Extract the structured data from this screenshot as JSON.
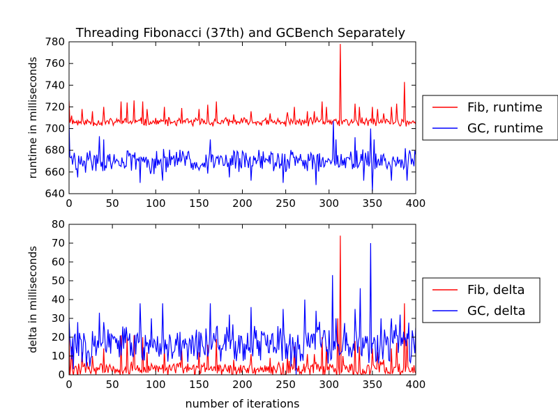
{
  "figure": {
    "title": "Threading Fibonacci (37th) and GCBench Separately"
  },
  "colors": {
    "fib": "#ff0000",
    "gc": "#0000ff",
    "axis": "#000000",
    "background": "#ffffff"
  },
  "chart_data": [
    {
      "type": "line",
      "title": "Threading Fibonacci (37th) and GCBench Separately",
      "xlabel": "",
      "ylabel": "runtime in milliseconds",
      "xlim": [
        0,
        400
      ],
      "ylim": [
        640,
        780
      ],
      "xticks": [
        0,
        50,
        100,
        150,
        200,
        250,
        300,
        350,
        400
      ],
      "yticks": [
        640,
        660,
        680,
        700,
        720,
        740,
        760,
        780
      ],
      "grid": false,
      "legend_position": "outside-right",
      "series": [
        {
          "name": "Fib, runtime",
          "color": "#ff0000",
          "base": 706,
          "amplitude": 3,
          "seed": 11,
          "points": [
            [
              0,
              726
            ],
            [
              3,
              712
            ],
            [
              15,
              718
            ],
            [
              27,
              716
            ],
            [
              40,
              720
            ],
            [
              60,
              725
            ],
            [
              67,
              724
            ],
            [
              75,
              726
            ],
            [
              85,
              725
            ],
            [
              90,
              718
            ],
            [
              110,
              720
            ],
            [
              130,
              719
            ],
            [
              150,
              718
            ],
            [
              160,
              722
            ],
            [
              170,
              725
            ],
            [
              190,
              713
            ],
            [
              210,
              716
            ],
            [
              232,
              714
            ],
            [
              252,
              715
            ],
            [
              260,
              720
            ],
            [
              275,
              716
            ],
            [
              283,
              716
            ],
            [
              292,
              725
            ],
            [
              297,
              720
            ],
            [
              305,
              707
            ],
            [
              313,
              778
            ],
            [
              330,
              723
            ],
            [
              335,
              720
            ],
            [
              350,
              720
            ],
            [
              356,
              718
            ],
            [
              363,
              714
            ],
            [
              372,
              720
            ],
            [
              378,
              723
            ],
            [
              387,
              743
            ],
            [
              395,
              705
            ],
            [
              400,
              704
            ]
          ]
        },
        {
          "name": "GC, runtime",
          "color": "#0000ff",
          "base": 670,
          "amplitude": 8,
          "seed": 29,
          "points": [
            [
              0,
              705
            ],
            [
              5,
              672
            ],
            [
              10,
              655
            ],
            [
              35,
              693
            ],
            [
              40,
              690
            ],
            [
              82,
              650
            ],
            [
              108,
              652
            ],
            [
              163,
              704
            ],
            [
              163,
              690
            ],
            [
              185,
              655
            ],
            [
              210,
              652
            ],
            [
              247,
              650
            ],
            [
              285,
              648
            ],
            [
              305,
              707
            ],
            [
              308,
              690
            ],
            [
              330,
              692
            ],
            [
              340,
              652
            ],
            [
              348,
              700
            ],
            [
              350,
              642
            ],
            [
              352,
              690
            ],
            [
              360,
              676
            ],
            [
              372,
              652
            ],
            [
              390,
              652
            ],
            [
              400,
              676
            ]
          ]
        }
      ]
    },
    {
      "type": "line",
      "title": "",
      "xlabel": "number of iterations",
      "ylabel": "delta in milliseconds",
      "xlim": [
        0,
        400
      ],
      "ylim": [
        0,
        80
      ],
      "xticks": [
        0,
        50,
        100,
        150,
        200,
        250,
        300,
        350,
        400
      ],
      "yticks": [
        0,
        10,
        20,
        30,
        40,
        50,
        60,
        70,
        80
      ],
      "grid": false,
      "legend_position": "outside-right",
      "series": [
        {
          "name": "Fib, delta",
          "color": "#ff0000",
          "base": 3,
          "amplitude": 3,
          "seed": 47,
          "points": [
            [
              0,
              22
            ],
            [
              3,
              15
            ],
            [
              15,
              12
            ],
            [
              27,
              10
            ],
            [
              40,
              14
            ],
            [
              60,
              21
            ],
            [
              67,
              20
            ],
            [
              75,
              21
            ],
            [
              85,
              20
            ],
            [
              90,
              12
            ],
            [
              110,
              14
            ],
            [
              130,
              13
            ],
            [
              150,
              12
            ],
            [
              160,
              16
            ],
            [
              170,
              19
            ],
            [
              190,
              8
            ],
            [
              210,
              11
            ],
            [
              232,
              9
            ],
            [
              252,
              10
            ],
            [
              260,
              15
            ],
            [
              275,
              11
            ],
            [
              283,
              11
            ],
            [
              292,
              20
            ],
            [
              297,
              15
            ],
            [
              305,
              3
            ],
            [
              310,
              30
            ],
            [
              313,
              74
            ],
            [
              316,
              10
            ],
            [
              330,
              18
            ],
            [
              335,
              15
            ],
            [
              350,
              14
            ],
            [
              356,
              12
            ],
            [
              363,
              8
            ],
            [
              372,
              14
            ],
            [
              378,
              17
            ],
            [
              387,
              38
            ],
            [
              390,
              20
            ],
            [
              395,
              2
            ],
            [
              400,
              1
            ]
          ]
        },
        {
          "name": "GC, delta",
          "color": "#0000ff",
          "base": 16,
          "amplitude": 8,
          "seed": 83,
          "points": [
            [
              0,
              30
            ],
            [
              2,
              15
            ],
            [
              5,
              3
            ],
            [
              10,
              28
            ],
            [
              35,
              33
            ],
            [
              40,
              28
            ],
            [
              82,
              38
            ],
            [
              95,
              30
            ],
            [
              108,
              38
            ],
            [
              120,
              12
            ],
            [
              163,
              38
            ],
            [
              170,
              25
            ],
            [
              185,
              32
            ],
            [
              210,
              36
            ],
            [
              247,
              35
            ],
            [
              262,
              0
            ],
            [
              272,
              40
            ],
            [
              285,
              34
            ],
            [
              304,
              53
            ],
            [
              308,
              30
            ],
            [
              330,
              35
            ],
            [
              336,
              46
            ],
            [
              340,
              14
            ],
            [
              348,
              70
            ],
            [
              352,
              20
            ],
            [
              360,
              30
            ],
            [
              372,
              30
            ],
            [
              382,
              32
            ],
            [
              390,
              22
            ],
            [
              400,
              25
            ]
          ]
        }
      ]
    }
  ]
}
